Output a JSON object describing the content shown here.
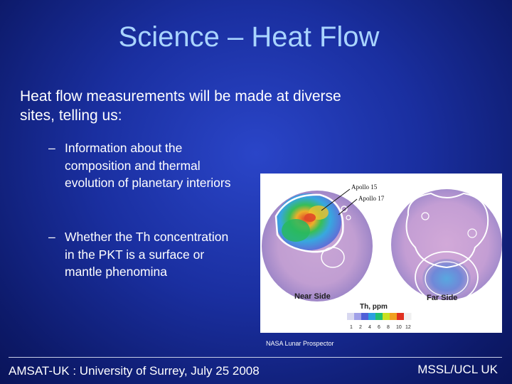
{
  "slide": {
    "title": "Science – Heat Flow",
    "lead": "Heat flow measurements will be made at diverse sites, telling us:",
    "bullets": [
      {
        "dash": "–",
        "text": "Information about the composition and thermal evolution of planetary interiors"
      },
      {
        "dash": "–",
        "text": "Whether the Th concentration in the PKT is a surface or mantle phenomina"
      }
    ]
  },
  "figure": {
    "labels": {
      "apollo15": "Apollo 15",
      "apollo17": "Apollo 17",
      "near_side": "Near Side",
      "far_side": "Far Side",
      "scale_title": "Th, ppm"
    },
    "scale_ticks": [
      "1",
      "2",
      "4",
      "6",
      "8",
      "10",
      "12"
    ],
    "scale_colors": [
      "#d8d8f0",
      "#a0a0e8",
      "#5060d8",
      "#2aa0e0",
      "#20c070",
      "#c8e020",
      "#f0a020",
      "#e03020",
      "#f0f0f0"
    ],
    "caption": "NASA Lunar Prospector"
  },
  "footer": {
    "left": "AMSAT-UK :  University of Surrey, July 25 2008",
    "right": "MSSL/UCL UK"
  }
}
